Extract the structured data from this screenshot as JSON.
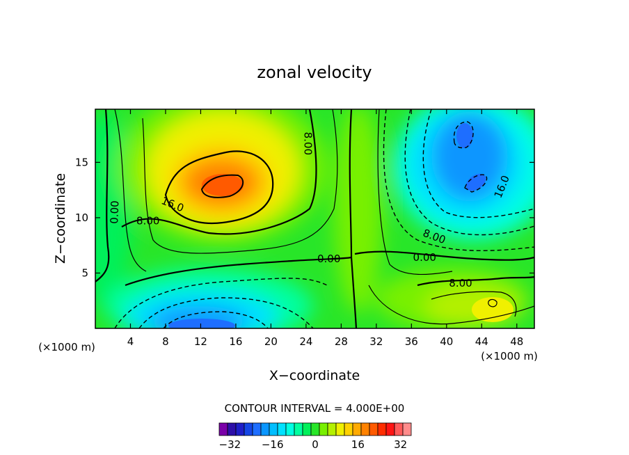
{
  "chart_data": {
    "type": "contour",
    "title": "zonal velocity",
    "xlabel": "X−coordinate",
    "ylabel": "Z−coordinate",
    "x_unit_left": "(×1000 m)",
    "x_unit_right": "(×1000 m)",
    "xlim": [
      0,
      50
    ],
    "ylim": [
      0,
      19.8
    ],
    "x_ticks": [
      "4",
      "8",
      "12",
      "16",
      "20",
      "24",
      "28",
      "32",
      "36",
      "40",
      "44",
      "48"
    ],
    "x_tick_values": [
      4,
      8,
      12,
      16,
      20,
      24,
      28,
      32,
      36,
      40,
      44,
      48
    ],
    "y_ticks": [
      "5",
      "10",
      "15"
    ],
    "y_tick_values": [
      5,
      10,
      15
    ],
    "contour_interval_text": "CONTOUR INTERVAL = 4.000E+00",
    "contour_labels": [
      {
        "text": "0.00",
        "x": 2.2,
        "y": 10.5,
        "rotate": -88
      },
      {
        "text": "8.00",
        "x": 6.0,
        "y": 9.7,
        "rotate": 0
      },
      {
        "text": "16.0",
        "x": 8.8,
        "y": 11.2,
        "rotate": 22
      },
      {
        "text": "8.00",
        "x": 24.2,
        "y": 16.7,
        "rotate": 90
      },
      {
        "text": "0.00",
        "x": 26.6,
        "y": 6.3,
        "rotate": 0
      },
      {
        "text": "0.00",
        "x": 37.5,
        "y": 6.4,
        "rotate": 0
      },
      {
        "text": "8.00",
        "x": 38.6,
        "y": 8.3,
        "rotate": 20
      },
      {
        "text": "16.0",
        "x": 46.3,
        "y": 12.8,
        "rotate": -68
      },
      {
        "text": "8.00",
        "x": 41.6,
        "y": 4.1,
        "rotate": 0
      }
    ],
    "field_features": [
      {
        "name": "positive-jet",
        "x": 14.5,
        "y": 12.7,
        "max": 28
      },
      {
        "name": "negative-upper-right",
        "x": 42.5,
        "y": 15.5,
        "min": -24
      },
      {
        "name": "negative-bottom",
        "x": 12.5,
        "y": 0.5,
        "min": -24
      },
      {
        "name": "positive-lower-right",
        "x": 44,
        "y": 2.5,
        "max": 12
      }
    ],
    "colorbar": {
      "colors": [
        "#7a00a8",
        "#2d0fa8",
        "#1e1ec8",
        "#1446e6",
        "#1e6eff",
        "#0a96ff",
        "#00beff",
        "#00e1ff",
        "#00ffe1",
        "#00ffa0",
        "#00f05a",
        "#28e628",
        "#78f000",
        "#b4f000",
        "#f0f000",
        "#ffd200",
        "#ffaa00",
        "#ff8200",
        "#ff5a00",
        "#ff2d00",
        "#ff1414",
        "#ff5a5a",
        "#ff8c8c"
      ],
      "tick_labels": [
        "−32",
        "−16",
        "0",
        "16",
        "32"
      ],
      "tick_values": [
        -32,
        -16,
        0,
        16,
        32
      ]
    }
  }
}
